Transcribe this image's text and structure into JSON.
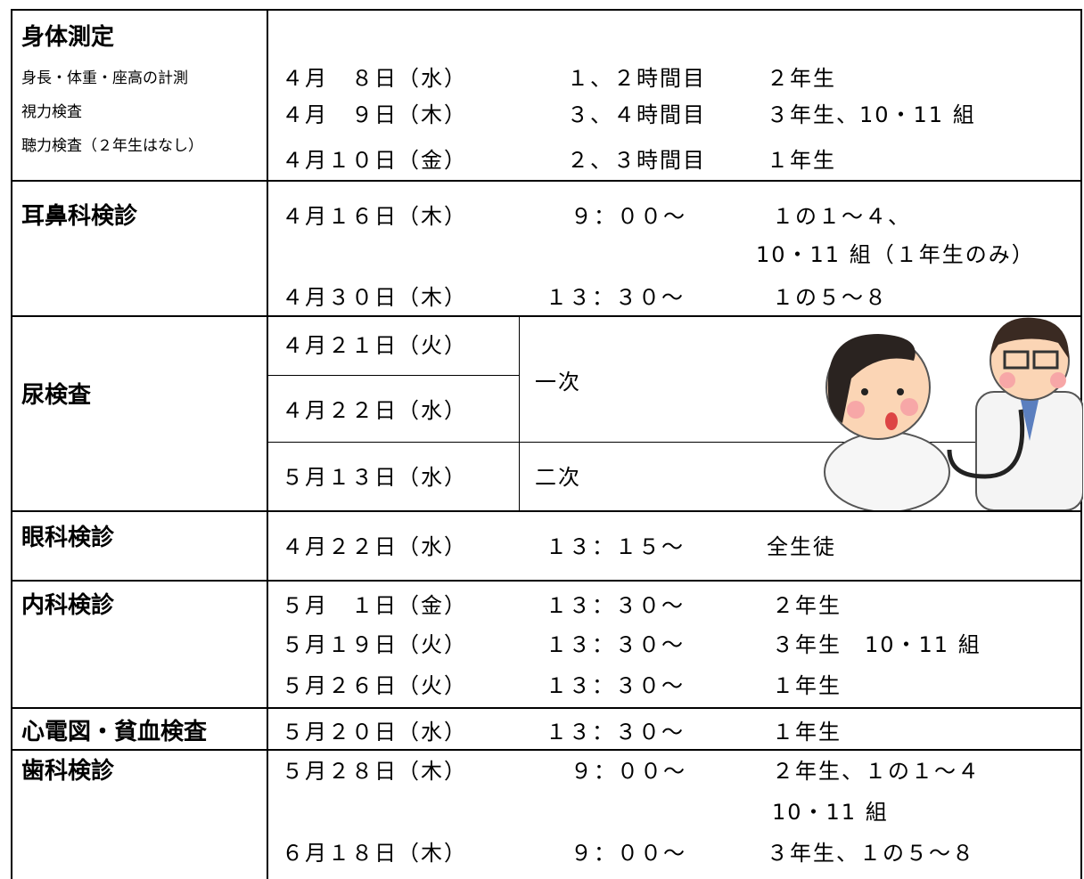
{
  "rows": [
    {
      "title": "身体測定",
      "notes": [
        "身長・体重・座高の計測",
        "視力検査",
        "聴力検査（２年生はなし）"
      ],
      "entries": [
        {
          "date": "４月　８日（水）",
          "time": "１、２時間目",
          "target": [
            "２年生"
          ]
        },
        {
          "date": "４月　９日（木）",
          "time": "３、４時間目",
          "target": [
            "３年生、10・11 組"
          ]
        },
        {
          "date": "４月１０日（金）",
          "time": "２、３時間目",
          "target": [
            "１年生"
          ]
        }
      ]
    },
    {
      "title": "耳鼻科検診",
      "entries": [
        {
          "date": "４月１６日（木）",
          "time": "９：００～",
          "target": [
            "１の１～４、",
            "10・11 組（１年生のみ）"
          ]
        },
        {
          "date": "４月３０日（木）",
          "time": "１３：３０～",
          "target": [
            "１の５～８"
          ]
        }
      ]
    },
    {
      "title": "尿検査",
      "entries": [
        {
          "dates": [
            "４月２１日（火）",
            "４月２２日（水）"
          ],
          "stage": "一次"
        },
        {
          "dates": [
            "５月１３日（水）"
          ],
          "stage": "二次"
        }
      ]
    },
    {
      "title": "眼科検診",
      "entries": [
        {
          "date": "４月２２日（水）",
          "time": "１３：１５～",
          "target": [
            "全生徒"
          ]
        }
      ]
    },
    {
      "title": "内科検診",
      "entries": [
        {
          "date": "５月　１日（金）",
          "time": "１３：３０～",
          "target": [
            "２年生"
          ]
        },
        {
          "date": "５月１９日（火）",
          "time": "１３：３０～",
          "target": [
            "３年生　10・11 組"
          ]
        },
        {
          "date": "５月２６日（火）",
          "time": "１３：３０～",
          "target": [
            "１年生"
          ]
        }
      ]
    },
    {
      "title": "心電図・貧血検査",
      "entries": [
        {
          "date": "５月２０日（水）",
          "time": "１３：３０～",
          "target": [
            "１年生"
          ]
        }
      ]
    },
    {
      "title": "歯科検診",
      "entries": [
        {
          "date": "５月２８日（木）",
          "time": "９：００～",
          "target": [
            "２年生、１の１～４",
            "10・11 組"
          ]
        },
        {
          "date": "６月１８日（木）",
          "time": "９：００～",
          "target": [
            "３年生、１の５～８"
          ]
        }
      ]
    }
  ]
}
